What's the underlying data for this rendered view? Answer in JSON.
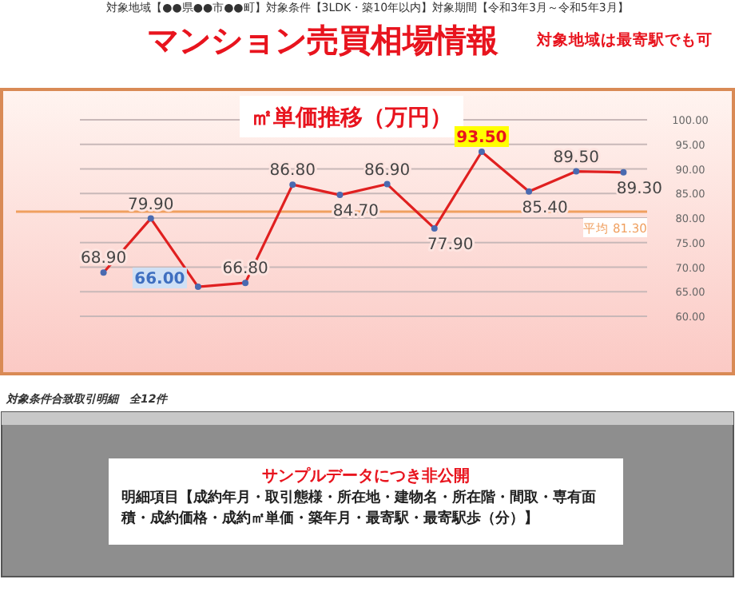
{
  "chart_data": {
    "type": "line",
    "title": "マンション売買相場情報",
    "subtitle": "対象地域は最寄駅でも可",
    "ylabel": "㎡単価推移（万円）",
    "categories": [
      null,
      null,
      null,
      null,
      null,
      null,
      null,
      null,
      null,
      null,
      null,
      null
    ],
    "series": [
      {
        "color": "#e02020",
        "values": [
          68.9,
          79.9,
          66.0,
          66.8,
          86.8,
          84.7,
          86.9,
          77.9,
          93.5,
          85.4,
          89.5,
          89.3
        ],
        "value_labels": [
          "68.90",
          "79.90",
          "66.00",
          "66.80",
          "86.80",
          "84.70",
          "86.90",
          "77.90",
          "93.50",
          "85.40",
          "89.50",
          "89.30"
        ]
      }
    ],
    "marker": "circle",
    "line_style": "solid",
    "ylim": [
      60,
      100
    ],
    "yticks": [
      {
        "value": 60,
        "label": "60.00"
      },
      {
        "value": 65,
        "label": "65.00"
      },
      {
        "value": 70,
        "label": "70.00"
      },
      {
        "value": 75,
        "label": "75.00"
      },
      {
        "value": 80,
        "label": "80.00"
      },
      {
        "value": 85,
        "label": "85.00"
      },
      {
        "value": 90,
        "label": "90.00"
      },
      {
        "value": 95,
        "label": "95.00"
      },
      {
        "value": 100,
        "label": "100.00"
      }
    ],
    "tick_labels": "y",
    "grid": "y",
    "ref_lines": [
      {
        "axis": "y",
        "value": 81.3,
        "label": "平均 81.30",
        "color": "#f0a060"
      }
    ],
    "annotations": [
      "対象地域【●●県●●市●●町】対象条件【3LDK・築10年以内】対象期間【令和3年3月～令和5年3月】",
      "対象条件合致取引明細　全12件",
      "サンプルデータにつき非公開",
      "明細項目【成約年月・取引態様・所在地・建物名・所在階・間取・専有面積・成約価格・成約㎡単価・築年月・最寄駅・最寄駅歩（分）】"
    ]
  }
}
